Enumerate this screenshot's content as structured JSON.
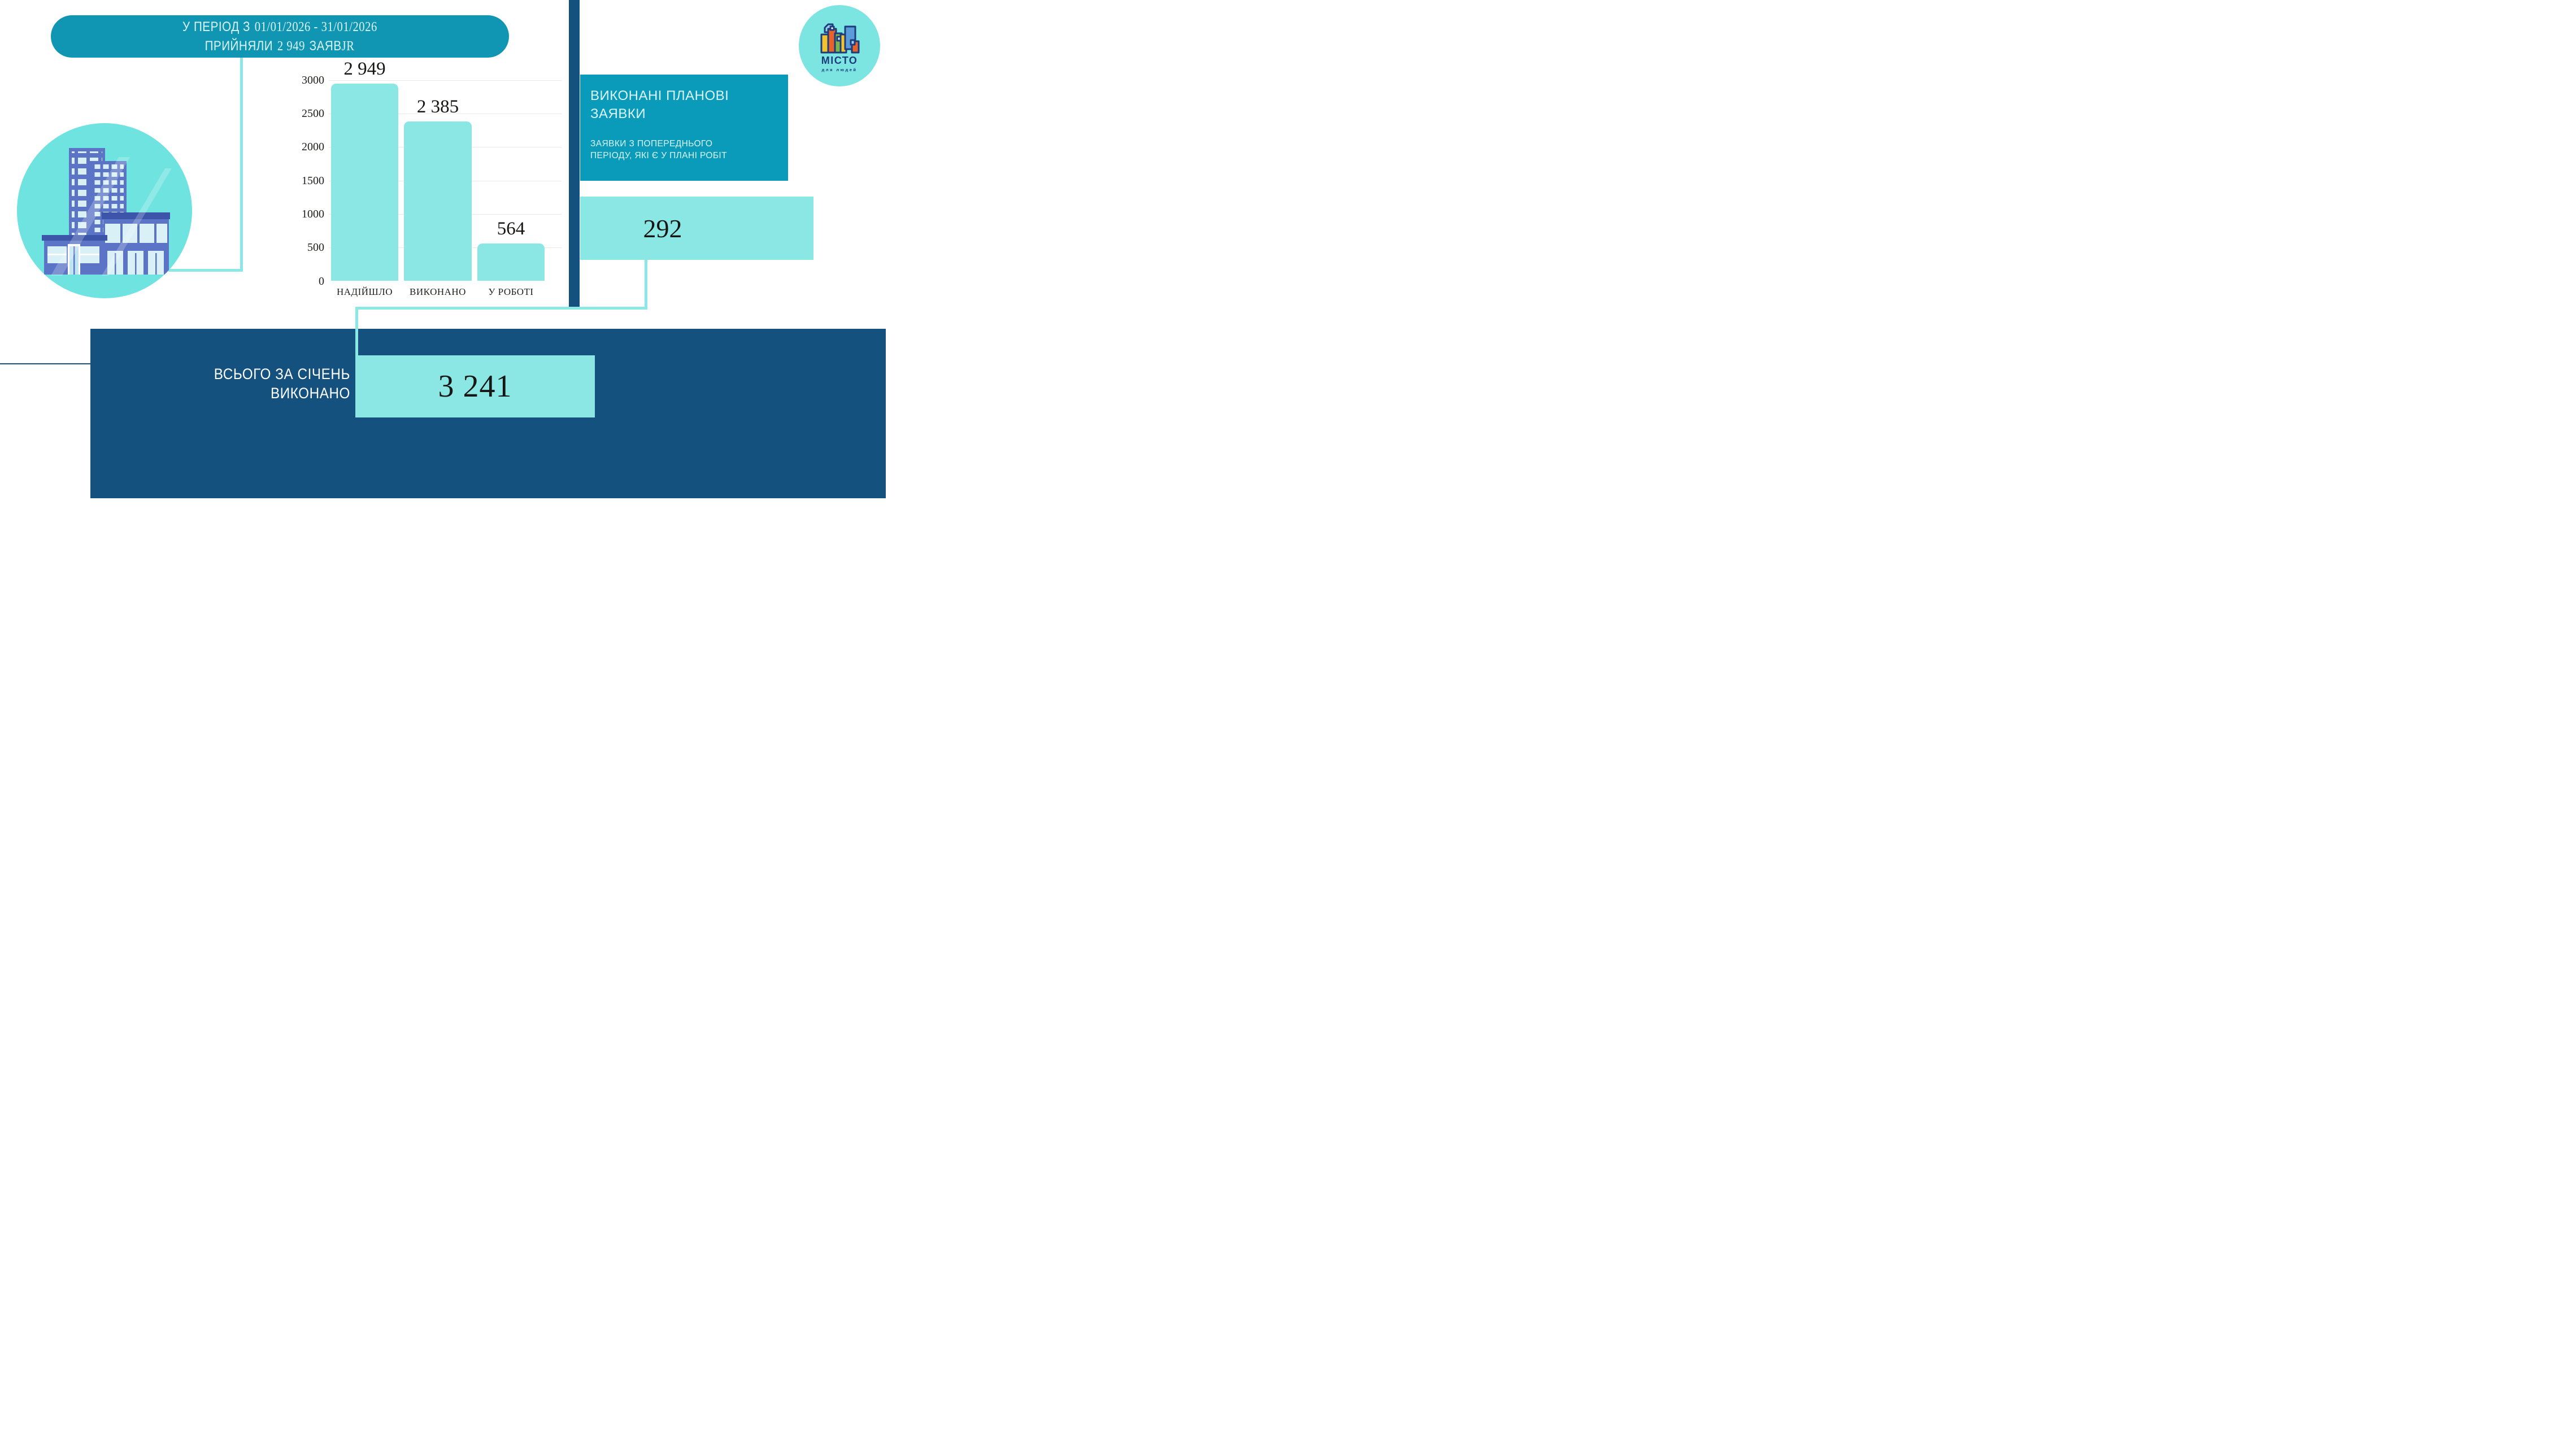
{
  "banner": {
    "line1_label": "У ПЕРІОД З",
    "line1_dates": "01/01/2026 - 31/01/2026",
    "line2_label": "ПРИЙНЯЛИ",
    "line2_value": "2 949",
    "line2_unit": "ЗАЯВ",
    "line2_unit_tail": "JR"
  },
  "logo": {
    "name": "МІСТО",
    "tagline": "для людей"
  },
  "chart_data": {
    "type": "bar",
    "categories": [
      "НАДІЙШЛО",
      "ВИКОНАНО",
      "У РОБОТІ"
    ],
    "values": [
      2949,
      2385,
      564
    ],
    "value_labels": [
      "2 949",
      "2 385",
      "564"
    ],
    "yticks": [
      0,
      500,
      1000,
      1500,
      2000,
      2500,
      3000
    ],
    "ylim": [
      0,
      3000
    ],
    "grid": true,
    "legend": "none",
    "bar_color": "#8ae7e3"
  },
  "planned": {
    "title_line1": "ВИКОНАНІ ПЛАНОВІ",
    "title_line2": "ЗАЯВКИ",
    "desc_line1": "ЗАЯВКИ З ПОПЕРЕДНЬОГО",
    "desc_line2": "ПЕРІОДУ, ЯКІ Є У ПЛАНІ РОБІТ",
    "value": "292"
  },
  "total": {
    "label_line1": "ВСЬОГО ЗА СІЧЕНЬ",
    "label_line2": "ВИКОНАНО",
    "value": "3 241"
  },
  "colors": {
    "teal": "#1095b3",
    "teal_box": "#0a9bbb",
    "teal_light": "#8ae7e3",
    "navy": "#15517e",
    "ink": "#1d1d1b",
    "pale_text": "#dcf5f7"
  }
}
